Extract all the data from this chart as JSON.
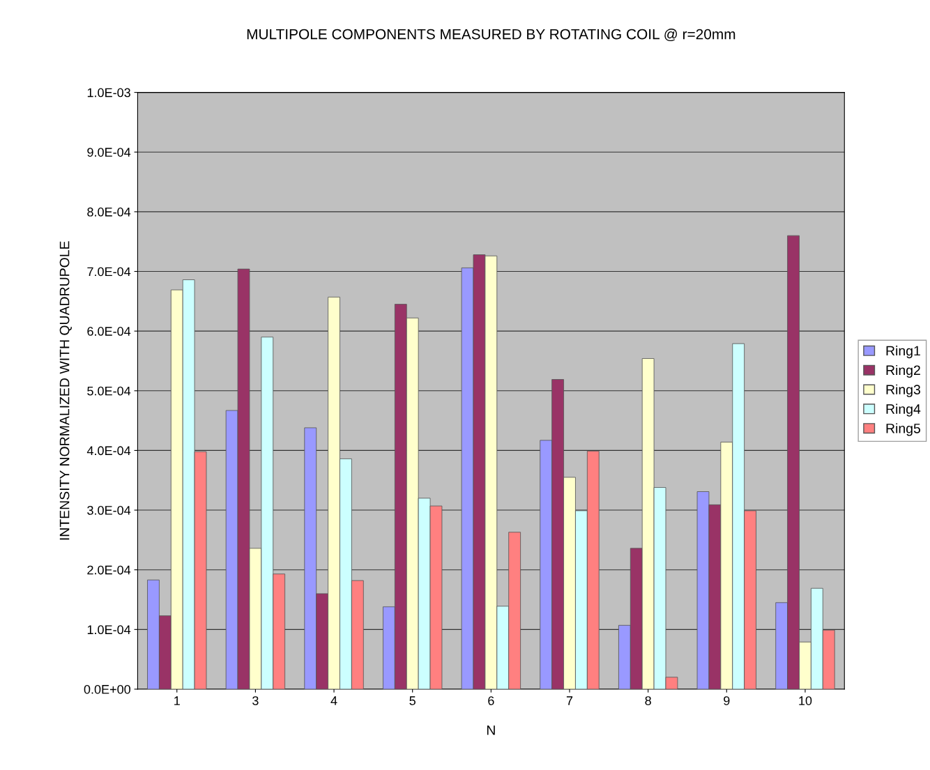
{
  "chart_data": {
    "type": "bar",
    "title": "MULTIPOLE COMPONENTS MEASURED BY ROTATING COIL @ r=20mm",
    "xlabel": "N",
    "ylabel": "INTENSITY NORMALIZED WITH QUADRUPOLE",
    "categories": [
      "1",
      "3",
      "4",
      "5",
      "6",
      "7",
      "8",
      "9",
      "10"
    ],
    "series": [
      {
        "name": "Ring1",
        "color": "#9999ff",
        "values": [
          0.000183,
          0.000467,
          0.000438,
          0.000138,
          0.000706,
          0.000417,
          0.000107,
          0.000331,
          0.000145
        ]
      },
      {
        "name": "Ring2",
        "color": "#993366",
        "values": [
          0.000123,
          0.000704,
          0.00016,
          0.000645,
          0.000728,
          0.000519,
          0.000236,
          0.000309,
          0.00076
        ]
      },
      {
        "name": "Ring3",
        "color": "#ffffcc",
        "values": [
          0.000669,
          0.000236,
          0.000657,
          0.000622,
          0.000726,
          0.000355,
          0.000554,
          0.000414,
          7.9e-05
        ]
      },
      {
        "name": "Ring4",
        "color": "#ccffff",
        "values": [
          0.000686,
          0.00059,
          0.000386,
          0.00032,
          0.000139,
          0.000299,
          0.000338,
          0.000579,
          0.000169
        ]
      },
      {
        "name": "Ring5",
        "color": "#ff8080",
        "values": [
          0.000398,
          0.000193,
          0.000182,
          0.000307,
          0.000263,
          0.000399,
          2e-05,
          0.000299,
          9.9e-05
        ]
      }
    ],
    "ylim": [
      0,
      0.001
    ],
    "yticks": [
      {
        "value": 0,
        "label": "0.0E+00"
      },
      {
        "value": 0.0001,
        "label": "1.0E-04"
      },
      {
        "value": 0.0002,
        "label": "2.0E-04"
      },
      {
        "value": 0.0003,
        "label": "3.0E-04"
      },
      {
        "value": 0.0004,
        "label": "4.0E-04"
      },
      {
        "value": 0.0005,
        "label": "5.0E-04"
      },
      {
        "value": 0.0006,
        "label": "6.0E-04"
      },
      {
        "value": 0.0007,
        "label": "7.0E-04"
      },
      {
        "value": 0.0008,
        "label": "8.0E-04"
      },
      {
        "value": 0.0009,
        "label": "9.0E-04"
      },
      {
        "value": 0.001,
        "label": "1.0E-03"
      }
    ],
    "grid": "y",
    "legend": "right"
  }
}
